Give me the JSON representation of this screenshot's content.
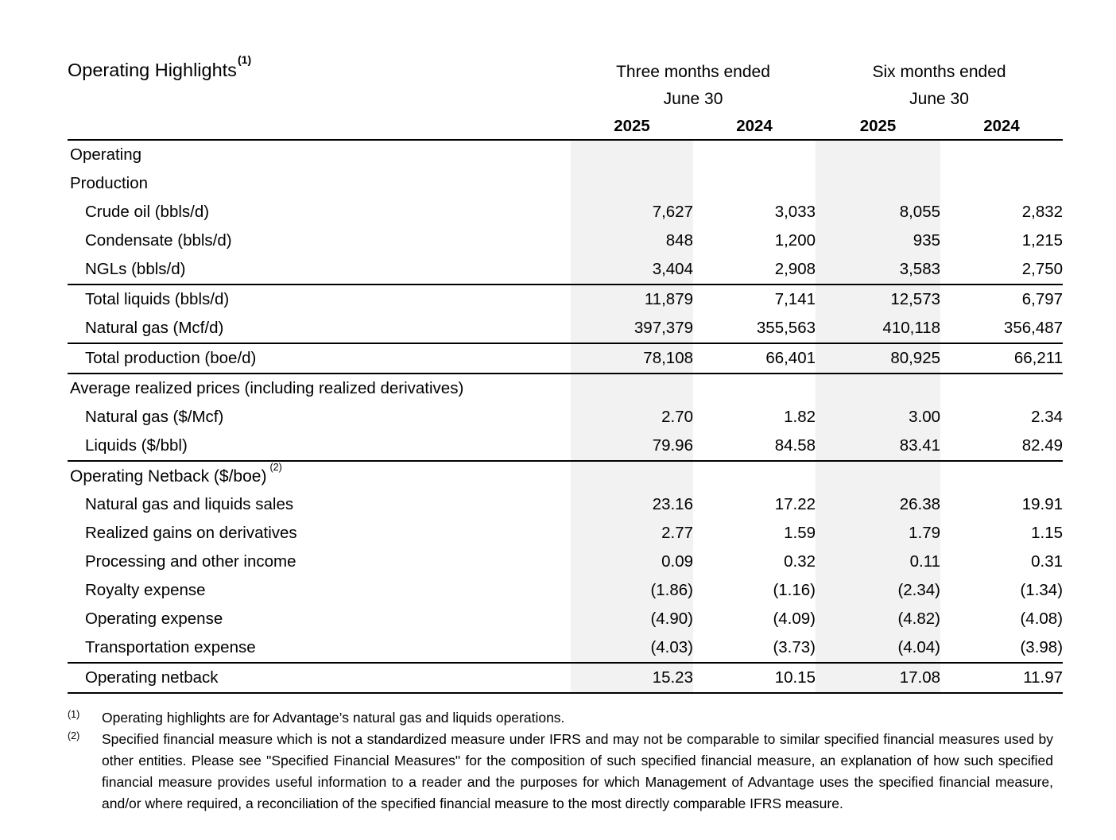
{
  "title": {
    "text": "Operating Highlights",
    "superscript": "(1)"
  },
  "table": {
    "col_groups": [
      {
        "label": "Three months ended",
        "sub": "June 30"
      },
      {
        "label": "Six months ended",
        "sub": "June 30"
      }
    ],
    "year_headers": [
      "2025",
      "2024",
      "2025",
      "2024"
    ],
    "rows": [
      {
        "label": "Operating",
        "style": "bold",
        "indent": 0,
        "values": [
          "",
          "",
          "",
          ""
        ]
      },
      {
        "label": "Production",
        "style": "plain",
        "indent": 0,
        "values": [
          "",
          "",
          "",
          ""
        ]
      },
      {
        "label": "Crude oil (bbls/d)",
        "style": "plain",
        "indent": 1,
        "values": [
          "7,627",
          "3,033",
          "8,055",
          "2,832"
        ]
      },
      {
        "label": "Condensate (bbls/d)",
        "style": "plain",
        "indent": 1,
        "values": [
          "848",
          "1,200",
          "935",
          "1,215"
        ]
      },
      {
        "label": "NGLs (bbls/d)",
        "style": "plain",
        "indent": 1,
        "rule_after": true,
        "values": [
          "3,404",
          "2,908",
          "3,583",
          "2,750"
        ]
      },
      {
        "label": "Total liquids (bbls/d)",
        "style": "plain",
        "indent": 1,
        "values": [
          "11,879",
          "7,141",
          "12,573",
          "6,797"
        ]
      },
      {
        "label": "Natural gas (Mcf/d)",
        "style": "plain",
        "indent": 1,
        "rule_after": true,
        "values": [
          "397,379",
          "355,563",
          "410,118",
          "356,487"
        ]
      },
      {
        "label": "Total production (boe/d)",
        "style": "plain",
        "indent": 1,
        "rule_after": true,
        "values": [
          "78,108",
          "66,401",
          "80,925",
          "66,211"
        ]
      },
      {
        "label": "Average realized prices (including realized derivatives)",
        "style": "plain",
        "indent": 0,
        "values": [
          "",
          "",
          "",
          ""
        ]
      },
      {
        "label": "Natural gas ($/Mcf)",
        "style": "plain",
        "indent": 1,
        "values": [
          "2.70",
          "1.82",
          "3.00",
          "2.34"
        ]
      },
      {
        "label": "Liquids ($/bbl)",
        "style": "plain",
        "indent": 1,
        "rule_after": true,
        "values": [
          "79.96",
          "84.58",
          "83.41",
          "82.49"
        ]
      },
      {
        "label": "Operating Netback ($/boe)",
        "superscript": "(2)",
        "style": "bold",
        "indent": 0,
        "values": [
          "",
          "",
          "",
          ""
        ]
      },
      {
        "label": "Natural gas and liquids sales",
        "style": "plain",
        "indent": 1,
        "values": [
          "23.16",
          "17.22",
          "26.38",
          "19.91"
        ]
      },
      {
        "label": "Realized gains on derivatives",
        "style": "plain",
        "indent": 1,
        "values": [
          "2.77",
          "1.59",
          "1.79",
          "1.15"
        ]
      },
      {
        "label": "Processing and other income",
        "style": "plain",
        "indent": 1,
        "values": [
          "0.09",
          "0.32",
          "0.11",
          "0.31"
        ]
      },
      {
        "label": "Royalty expense",
        "style": "plain",
        "indent": 1,
        "values": [
          "(1.86)",
          "(1.16)",
          "(2.34)",
          "(1.34)"
        ]
      },
      {
        "label": "Operating expense",
        "style": "plain",
        "indent": 1,
        "values": [
          "(4.90)",
          "(4.09)",
          "(4.82)",
          "(4.08)"
        ]
      },
      {
        "label": "Transportation expense",
        "style": "plain",
        "indent": 1,
        "rule_after": true,
        "values": [
          "(4.03)",
          "(3.73)",
          "(4.04)",
          "(3.98)"
        ]
      },
      {
        "label": "Operating netback",
        "style": "plain",
        "indent": 1,
        "rule_after": true,
        "values": [
          "15.23",
          "10.15",
          "17.08",
          "11.97"
        ]
      }
    ]
  },
  "footnotes": [
    {
      "marker": "(1)",
      "text": "Operating highlights are for Advantage’s natural gas and liquids operations."
    },
    {
      "marker": "(2)",
      "text": "Specified financial measure which is not a standardized measure under IFRS and may not be comparable to similar specified financial measures used by other entities. Please see \"Specified Financial Measures\" for the composition of such specified financial measure, an explanation of how such specified financial measure provides useful information to a reader and the purposes for which Management of Advantage uses the specified financial measure, and/or where required, a reconciliation of the specified financial measure to the most directly comparable IFRS measure."
    }
  ],
  "colors": {
    "highlight_column_bg": "#f2f2f2",
    "text": "#000000",
    "rule": "#000000"
  }
}
